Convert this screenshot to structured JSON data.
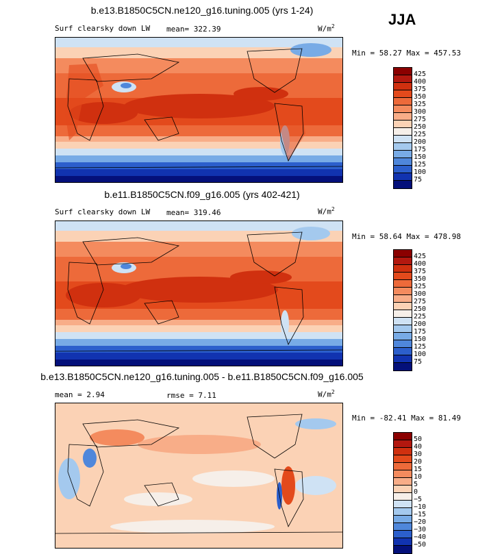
{
  "season": "JJA",
  "panels": [
    {
      "title": "b.e13.B1850C5CN.ne120_g16.tuning.005 (yrs 1-24)",
      "subtitle": "Surf clearsky down LW",
      "mean_text": "mean= 322.39",
      "unit_base": "W/m",
      "unit_exp": "2",
      "minmax": "Min =  58.27 Max = 457.53"
    },
    {
      "title": "b.e11.B1850C5CN.f09_g16.005 (yrs 402-421)",
      "subtitle": "Surf clearsky down LW",
      "mean_text": "mean= 319.46",
      "unit_base": "W/m",
      "unit_exp": "2",
      "minmax": "Min =  58.64 Max = 478.98"
    },
    {
      "title": "b.e13.B1850C5CN.ne120_g16.tuning.005 - b.e11.B1850C5CN.f09_g16.005",
      "subtitle": "mean =   2.94",
      "mean_text": "rmse =   7.11",
      "unit_base": "W/m",
      "unit_exp": "2",
      "minmax": "Min = -82.41 Max =  81.49"
    }
  ],
  "chart_data": [
    {
      "type": "heatmap",
      "title": "b.e13.B1850C5CN.ne120_g16.tuning.005 (yrs 1-24)",
      "variable": "Surf clearsky down LW",
      "units": "W/m2",
      "season": "JJA",
      "mean": 322.39,
      "min": 58.27,
      "max": 457.53,
      "colorbar_levels": [
        "425",
        "400",
        "375",
        "350",
        "325",
        "300",
        "275",
        "250",
        "225",
        "200",
        "175",
        "150",
        "125",
        "100",
        "75"
      ],
      "colorbar_colors": [
        "#8b0000",
        "#b3180f",
        "#d0300f",
        "#e34a1c",
        "#ed6a3a",
        "#f48b5e",
        "#f8ad88",
        "#fbd2b5",
        "#f6efe9",
        "#cfe2f4",
        "#a4c9ee",
        "#78abe6",
        "#4f87db",
        "#2c5fcc",
        "#1133b0",
        "#04107a"
      ]
    },
    {
      "type": "heatmap",
      "title": "b.e11.B1850C5CN.f09_g16.005 (yrs 402-421)",
      "variable": "Surf clearsky down LW",
      "units": "W/m2",
      "season": "JJA",
      "mean": 319.46,
      "min": 58.64,
      "max": 478.98,
      "colorbar_levels": [
        "425",
        "400",
        "375",
        "350",
        "325",
        "300",
        "275",
        "250",
        "225",
        "200",
        "175",
        "150",
        "125",
        "100",
        "75"
      ],
      "colorbar_colors": [
        "#8b0000",
        "#b3180f",
        "#d0300f",
        "#e34a1c",
        "#ed6a3a",
        "#f48b5e",
        "#f8ad88",
        "#fbd2b5",
        "#f6efe9",
        "#cfe2f4",
        "#a4c9ee",
        "#78abe6",
        "#4f87db",
        "#2c5fcc",
        "#1133b0",
        "#04107a"
      ]
    },
    {
      "type": "heatmap",
      "title": "b.e13.B1850C5CN.ne120_g16.tuning.005 - b.e11.B1850C5CN.f09_g16.005",
      "units": "W/m2",
      "season": "JJA",
      "mean": 2.94,
      "rmse": 7.11,
      "min": -82.41,
      "max": 81.49,
      "colorbar_levels": [
        "50",
        "40",
        "30",
        "20",
        "15",
        "10",
        "5",
        "0",
        "−5",
        "−10",
        "−15",
        "−20",
        "−30",
        "−40",
        "−50"
      ],
      "colorbar_colors": [
        "#8b0000",
        "#b3180f",
        "#d0300f",
        "#e34a1c",
        "#ed6a3a",
        "#f48b5e",
        "#f8ad88",
        "#fbd2b5",
        "#f6efe9",
        "#cfe2f4",
        "#a4c9ee",
        "#78abe6",
        "#4f87db",
        "#2c5fcc",
        "#1133b0",
        "#04107a"
      ]
    }
  ]
}
